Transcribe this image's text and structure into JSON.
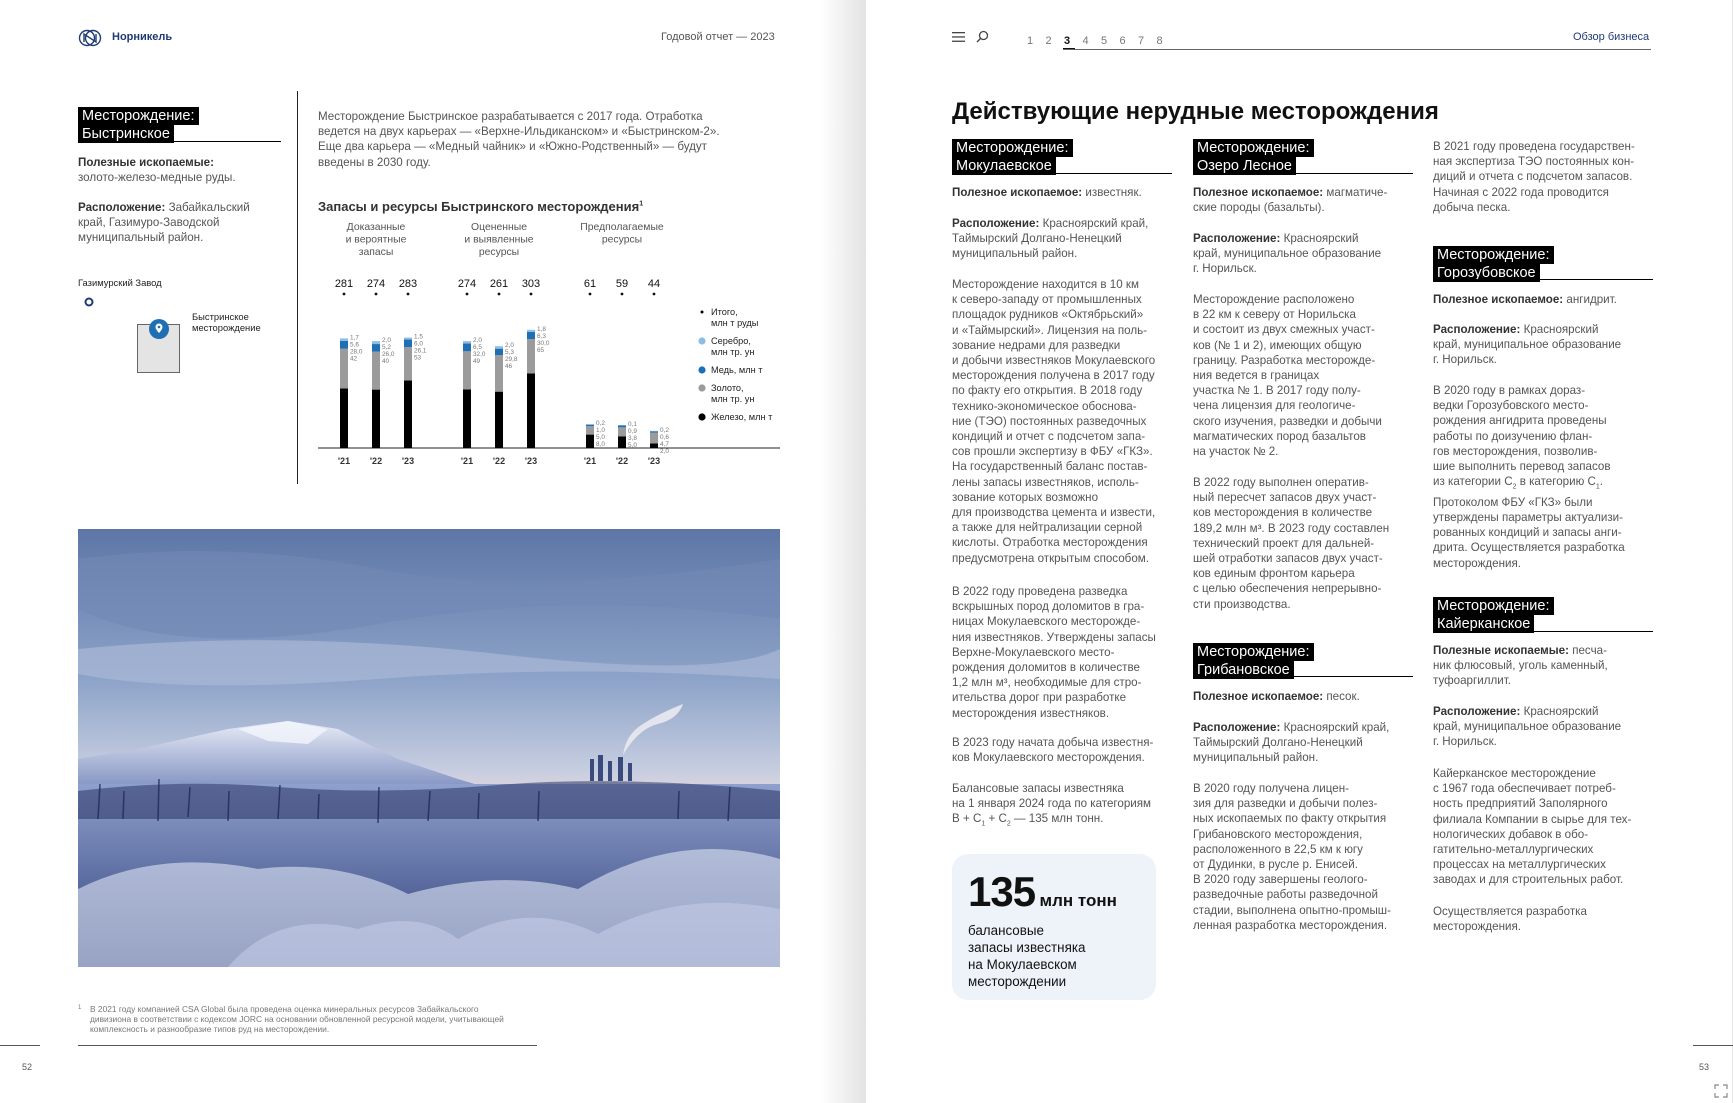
{
  "left": {
    "brand": "Норникель",
    "header_title": "Годовой отчет — 2023",
    "deposit": {
      "tag_line1": "Месторождение:",
      "tag_line2": "Быстринское",
      "minerals_label": "Полезные ископаемые:",
      "minerals_value": "золото-железо-медные руды.",
      "location_label": "Расположение:",
      "location_value": "Забайкальский край, Газимуро-Заводской муниципальный район."
    },
    "map": {
      "plant_label": "Газимурский Завод",
      "deposit_label_1": "Быстринское",
      "deposit_label_2": "месторождение"
    },
    "intro_lines": [
      "Месторождение Быстринское разрабатывается с 2017 года. Отработка",
      "ведется на двух карьерах — «Верхне-Ильдиканском» и «Быстринском-2».",
      "Еще два карьера — «Медный чайник» и «Южно-Родственный» — будут",
      "введены в 2030 году."
    ],
    "footnote_mark": "1",
    "footnote_lines": [
      "В 2021 году компанией CSA Global была проведена оценка минеральных ресурсов Забайкальского",
      "дивизиона в соответствии с кодексом JORC на основании обновленной ресурсной модели, учитывающей",
      "комплексность и разнообразие типов руд на месторождении."
    ],
    "page_number": "52"
  },
  "chart_data": {
    "type": "bar",
    "title": "Запасы и ресурсы Быстринского месторождения",
    "title_footnote": "1",
    "groups": [
      {
        "label_lines": [
          "Доказанные",
          "и вероятные",
          "запасы"
        ],
        "years": [
          "'21",
          "'22",
          "'23"
        ],
        "totals": [
          "281",
          "274",
          "283"
        ],
        "iron": [
          42,
          40,
          53
        ],
        "iron_labels": [
          "42",
          "40",
          "53"
        ],
        "gold": [
          28.0,
          26.0,
          26.1
        ],
        "gold_labels": [
          "28,0",
          "26,0",
          "26,1"
        ],
        "copper": [
          5.6,
          5.2,
          6.0
        ],
        "copper_labels": [
          "5,6",
          "5,2",
          "6,0"
        ],
        "silver": [
          1.7,
          2.0,
          1.5
        ],
        "silver_labels": [
          "1,7",
          "2,0",
          "1,5"
        ]
      },
      {
        "label_lines": [
          "Оцененные",
          "и выявленные",
          "ресурсы"
        ],
        "years": [
          "'21",
          "'22",
          "'23"
        ],
        "totals": [
          "274",
          "261",
          "303"
        ],
        "iron": [
          49,
          46,
          65
        ],
        "iron_labels": [
          "49",
          "46",
          "65"
        ],
        "gold": [
          32.0,
          29.8,
          30.0
        ],
        "gold_labels": [
          "32,0",
          "29,8",
          "30,0"
        ],
        "copper": [
          6.5,
          5.3,
          6.3
        ],
        "copper_labels": [
          "6,5",
          "5,3",
          "6,3"
        ],
        "silver": [
          2.0,
          2.0,
          1.8
        ],
        "silver_labels": [
          "2,0",
          "2,0",
          "1,8"
        ]
      },
      {
        "label_lines": [
          "Предполагаемые",
          "ресурсы"
        ],
        "years": [
          "'21",
          "'22",
          "'23"
        ],
        "totals": [
          "61",
          "59",
          "44"
        ],
        "iron": [
          8.0,
          5.0,
          2.0
        ],
        "iron_labels": [
          "8,0",
          "5,0",
          "2,0"
        ],
        "gold": [
          5.0,
          3.8,
          4.7
        ],
        "gold_labels": [
          "5,0",
          "3,8",
          "4,7"
        ],
        "copper": [
          1.0,
          0.9,
          0.6
        ],
        "copper_labels": [
          "1,0",
          "0,9",
          "0,6"
        ],
        "silver": [
          0.2,
          0.1,
          0.2
        ],
        "silver_labels": [
          "0,2",
          "0,1",
          "0,2"
        ]
      }
    ],
    "legend": [
      {
        "key": "total",
        "lines": [
          "Итого,",
          "млн т руды"
        ],
        "color": "#000000"
      },
      {
        "key": "silver",
        "lines": [
          "Серебро,",
          "млн тр. ун"
        ],
        "color": "#8cbde6"
      },
      {
        "key": "copper",
        "lines": [
          "Медь, млн т"
        ],
        "color": "#1f6fb4"
      },
      {
        "key": "gold",
        "lines": [
          "Золото,",
          "млн тр. ун"
        ],
        "color": "#9b9b9b"
      },
      {
        "key": "iron",
        "lines": [
          "Железо, млн т"
        ],
        "color": "#000000"
      }
    ],
    "legend_position": "right"
  },
  "right": {
    "nav_pages": [
      "1",
      "2",
      "3",
      "4",
      "5",
      "6",
      "7",
      "8"
    ],
    "active_page": "3",
    "section": "Обзор бизнеса",
    "heading": "Действующие нерудные месторождения",
    "page_number": "53",
    "col1": {
      "tag1": "Месторождение:",
      "tag2": "Мокулаевское",
      "minerals_label": "Полезное ископаемое:",
      "minerals_value": "известняк.",
      "location_label": "Расположение:",
      "location_lines": [
        "Красноярский край,",
        "Таймырский Долгано-Ненецкий",
        "муниципальный район."
      ],
      "para1": [
        "Месторождение находится в 10 км",
        "к северо-западу от промышленных",
        "площадок рудников «Октябрьский»",
        "и «Таймырский». Лицензия на поль-",
        "зование недрами для разведки",
        "и добычи известняков Мокулаевского",
        "месторождения получена в 2017 году",
        "по факту его открытия. В 2018 году",
        "технико-экономическое обоснова-",
        "ние (ТЭО) постоянных разведочных",
        "кондиций и отчет с подсчетом запа-",
        "сов прошли экспертизу в ФБУ «ГКЗ».",
        "На государственный баланс постав-",
        "лены запасы известняков, исполь-",
        "зование которых возможно",
        "для производства цемента и извести,",
        "а также для нейтрализации серной",
        "кислоты. Отработка месторождения",
        "предусмотрена открытым способом."
      ],
      "para2": [
        "В 2022 году проведена разведка",
        "вскрышных пород доломитов в гра-",
        "ницах Мокулаевского месторожде-",
        "ния известняков. Утверждены запасы",
        "Верхне-Мокулаевского место-",
        "рождения доломитов в количестве",
        "1,2 млн м³, необходимые для стро-",
        "ительства дорог при разработке",
        "месторождения известняков."
      ],
      "para3": [
        "В 2023 году начата добыча известня-",
        "ков Мокулаевского месторождения."
      ],
      "para4_line1": "Балансовые запасы известняка",
      "para4_line2": "на 1 января 2024 года по категориям",
      "para4_b": "B + C",
      "para4_sub1": "1",
      "para4_plus": " + C",
      "para4_sub2": "2",
      "para4_end": " — 135 млн тонн.",
      "highlight_number": "135",
      "highlight_unit": "млн тонн",
      "highlight_lines": [
        "балансовые",
        "запасы известняка",
        "на Мокулаевском",
        "месторождении"
      ]
    },
    "col2": {
      "tag1": "Месторождение:",
      "tag2": "Озеро Лесное",
      "minerals_label": "Полезное ископаемое:",
      "minerals_lines": [
        "магматиче-",
        "ские породы (базальты)."
      ],
      "location_label": "Расположение:",
      "location_lines": [
        "Красноярский",
        "край, муниципальное образование",
        "г. Норильск."
      ],
      "para1": [
        "Месторождение расположено",
        "в 22 км к северу от Норильска",
        "и состоит из двух смежных участ-",
        "ков (№ 1 и 2), имеющих общую",
        "границу. Разработка месторожде-",
        "ния ведется в границах",
        "участка № 1. В 2017 году полу-",
        "чена лицензия для геологиче-",
        "ского изучения, разведки и добычи",
        "магматических пород базальтов",
        "на участок № 2."
      ],
      "para2": [
        "В 2022 году выполнен оператив-",
        "ный пересчет запасов двух участ-",
        "ков месторождения в количестве",
        "189,2 млн м³. В 2023 году составлен",
        "технический проект для дальней-",
        "шей отработки запасов двух участ-",
        "ков единым фронтом карьера",
        "с целью обеспечения непрерывно-",
        "сти производства."
      ],
      "tag3": "Месторождение:",
      "tag4": "Грибановское",
      "minerals2_label": "Полезное ископаемое:",
      "minerals2_value": "песок.",
      "location2_label": "Расположение:",
      "location2_lines": [
        "Красноярский край,",
        "Таймырский Долгано-Ненецкий",
        "муниципальный район."
      ],
      "para3": [
        "В 2020 году получена лицен-",
        "зия для разведки и добычи полез-",
        "ных ископаемых по факту открытия",
        "Грибановского месторождения,",
        "расположенного в 22,5 км к югу",
        "от Дудинки, в русле р. Енисей.",
        "В 2020 году завершены геолого-",
        "разведочные работы разведочной",
        "стадии, выполнена опытно-промыш-",
        "ленная разработка месторождения."
      ]
    },
    "col3": {
      "para0": [
        "В 2021 году проведена государствен-",
        "ная экспертиза ТЭО постоянных кон-",
        "диций и отчета с подсчетом запасов.",
        "Начиная с 2022 года проводится",
        "добыча песка."
      ],
      "tag1": "Месторождение:",
      "tag2": "Горозубовское",
      "minerals_label": "Полезное ископаемое:",
      "minerals_value": "ангидрит.",
      "location_label": "Расположение:",
      "location_lines": [
        "Красноярский",
        "край, муниципальное образование",
        "г. Норильск."
      ],
      "para1_lines_a": [
        "В 2020 году в рамках дораз-",
        "ведки Горозубовского место-",
        "рождения ангидрита проведены",
        "работы по доизучению флан-",
        "гов месторождения, позволив-",
        "шие выполнить перевод запасов"
      ],
      "para1_cat_pre": "из категории C",
      "para1_cat_sub1": "2",
      "para1_cat_mid": " в категорию C",
      "para1_cat_sub2": "1",
      "para1_cat_end": ".",
      "para1_lines_b": [
        "Протоколом ФБУ «ГКЗ» были",
        "утверждены параметры актуализи-",
        "рованных кондиций и запасы анги-",
        "дрита. Осуществляется разработка",
        "месторождения."
      ],
      "tag3": "Месторождение:",
      "tag4": "Кайерканское",
      "minerals2_label": "Полезные ископаемые:",
      "minerals2_lines": [
        "песча-",
        "ник флюсовый, уголь каменный,",
        "туфоаргиллит."
      ],
      "location2_label": "Расположение:",
      "location2_lines": [
        "Красноярский",
        "край, муниципальное образование",
        "г. Норильск."
      ],
      "para2": [
        "Кайерканское месторождение",
        "с 1967 года обеспечивает потреб-",
        "ность предприятий Заполярного",
        "филиала Компании в сырье для тех-",
        "нологических добавок в обо-",
        "гатительно-металлургических",
        "процессах на металлургических",
        "заводах и для строительных работ."
      ],
      "para3": [
        "Осуществляется разработка",
        "месторождения."
      ]
    }
  }
}
